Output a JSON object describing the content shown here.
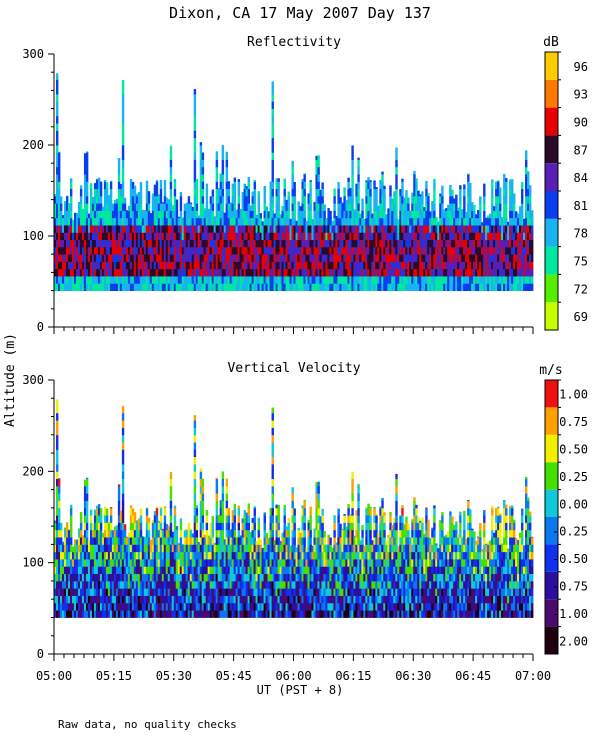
{
  "chart_data": {
    "type": "heatmap",
    "title": "Dixon, CA 17 May 2007  Day 137",
    "ylabel": "Altitude (m)",
    "xlabel": "UT  (PST + 8)",
    "note": "Raw data, no quality checks",
    "x_range_hours": [
      5.0,
      7.0
    ],
    "x_tick_labels": [
      "05:00",
      "05:15",
      "05:30",
      "05:45",
      "06:00",
      "06:15",
      "06:30",
      "06:45",
      "07:00"
    ],
    "panels": [
      {
        "title": "Reflectivity",
        "ylim": [
          0,
          300
        ],
        "y_tick_values": [
          0,
          100,
          200,
          300
        ],
        "y_tick_labels": [
          "0",
          "100",
          "200",
          "300"
        ],
        "colorbar": {
          "units": "dB",
          "levels": [
            69,
            72,
            75,
            78,
            81,
            84,
            87,
            90,
            93,
            96
          ],
          "labels": [
            "69",
            "72",
            "75",
            "78",
            "81",
            "84",
            "87",
            "90",
            "93",
            "96"
          ],
          "colors": [
            "#c8ff00",
            "#55ee00",
            "#00e8a0",
            "#18b4f0",
            "#0a3cf0",
            "#5a1eb4",
            "#2a0a28",
            "#e80000",
            "#ff7800",
            "#ffcc00"
          ]
        },
        "field": {
          "base_altitude_m": 40,
          "typical_top_m": 140,
          "max_plume_top_m": 280,
          "core_altitude_m": [
            50,
            110
          ],
          "core_value_db": 88,
          "edge_value_db": 79
        }
      },
      {
        "title": "Vertical Velocity",
        "ylim": [
          0,
          300
        ],
        "y_tick_values": [
          0,
          100,
          200,
          300
        ],
        "y_tick_labels": [
          "0",
          "100",
          "200",
          "300"
        ],
        "colorbar": {
          "units": "m/s",
          "levels": [
            -2.0,
            -1.0,
            -0.75,
            -0.5,
            -0.25,
            0.0,
            0.25,
            0.5,
            0.75,
            1.0
          ],
          "labels": [
            "-2.00",
            "-1.00",
            "-0.75",
            "-0.50",
            "-0.25",
            "0.00",
            "0.25",
            "0.50",
            "0.75",
            "1.00"
          ],
          "colors": [
            "#200010",
            "#4a0a6e",
            "#2a10a0",
            "#1030f0",
            "#0a78f0",
            "#10c8d8",
            "#44e000",
            "#f0f000",
            "#ffa000",
            "#f01010"
          ]
        },
        "field": {
          "base_altitude_m": 40,
          "typical_top_m": 140,
          "max_plume_top_m": 280,
          "low_level_value_ms": -0.6,
          "plume_value_ms": 0.4
        }
      }
    ]
  }
}
